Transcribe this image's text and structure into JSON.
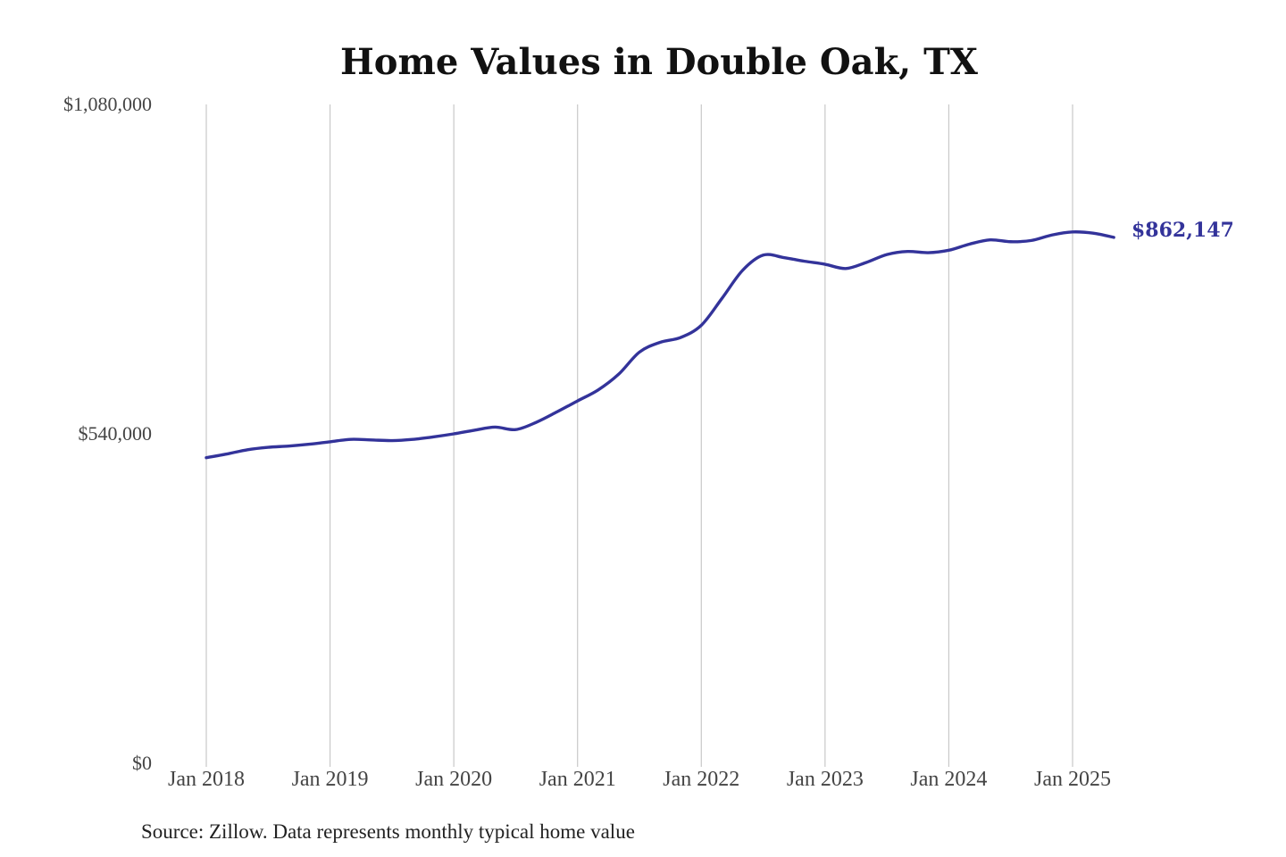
{
  "chart_data": {
    "type": "line",
    "title": "Home Values in Double Oak, TX",
    "xlabel": "",
    "ylabel": "",
    "ylim": [
      0,
      1080000
    ],
    "y_ticks": [
      "$0",
      "$540,000",
      "$1,080,000"
    ],
    "y_tick_values": [
      0,
      540000,
      1080000
    ],
    "x_ticks": [
      "Jan 2018",
      "Jan 2019",
      "Jan 2020",
      "Jan 2021",
      "Jan 2022",
      "Jan 2023",
      "Jan 2024",
      "Jan 2025"
    ],
    "x_tick_values": [
      "2018-01",
      "2019-01",
      "2020-01",
      "2021-01",
      "2022-01",
      "2023-01",
      "2024-01",
      "2025-01"
    ],
    "grid": "vertical",
    "line_color": "#33339a",
    "end_label": "$862,147",
    "series": [
      {
        "x": [
          "2018-01",
          "2018-03",
          "2018-05",
          "2018-07",
          "2018-09",
          "2018-11",
          "2019-01",
          "2019-03",
          "2019-05",
          "2019-07",
          "2019-09",
          "2019-11",
          "2020-01",
          "2020-03",
          "2020-05",
          "2020-07",
          "2020-09",
          "2020-11",
          "2021-01",
          "2021-03",
          "2021-05",
          "2021-07",
          "2021-09",
          "2021-11",
          "2022-01",
          "2022-03",
          "2022-05",
          "2022-07",
          "2022-09",
          "2022-11",
          "2023-01",
          "2023-03",
          "2023-05",
          "2023-07",
          "2023-09",
          "2023-11",
          "2024-01",
          "2024-03",
          "2024-05",
          "2024-07",
          "2024-09",
          "2024-11",
          "2025-01",
          "2025-03",
          "2025-05"
        ],
        "values": [
          501000,
          507000,
          514000,
          518000,
          520000,
          523000,
          527000,
          531000,
          530000,
          529000,
          531000,
          535000,
          540000,
          546000,
          551000,
          547000,
          559000,
          576000,
          594000,
          612000,
          638000,
          674000,
          690000,
          698000,
          718000,
          762000,
          808000,
          833000,
          829000,
          823000,
          818000,
          811000,
          821000,
          834000,
          839000,
          837000,
          841000,
          851000,
          858000,
          855000,
          857000,
          866000,
          871000,
          869000,
          862147
        ]
      }
    ],
    "source": "Source: Zillow. Data represents monthly typical home value"
  }
}
